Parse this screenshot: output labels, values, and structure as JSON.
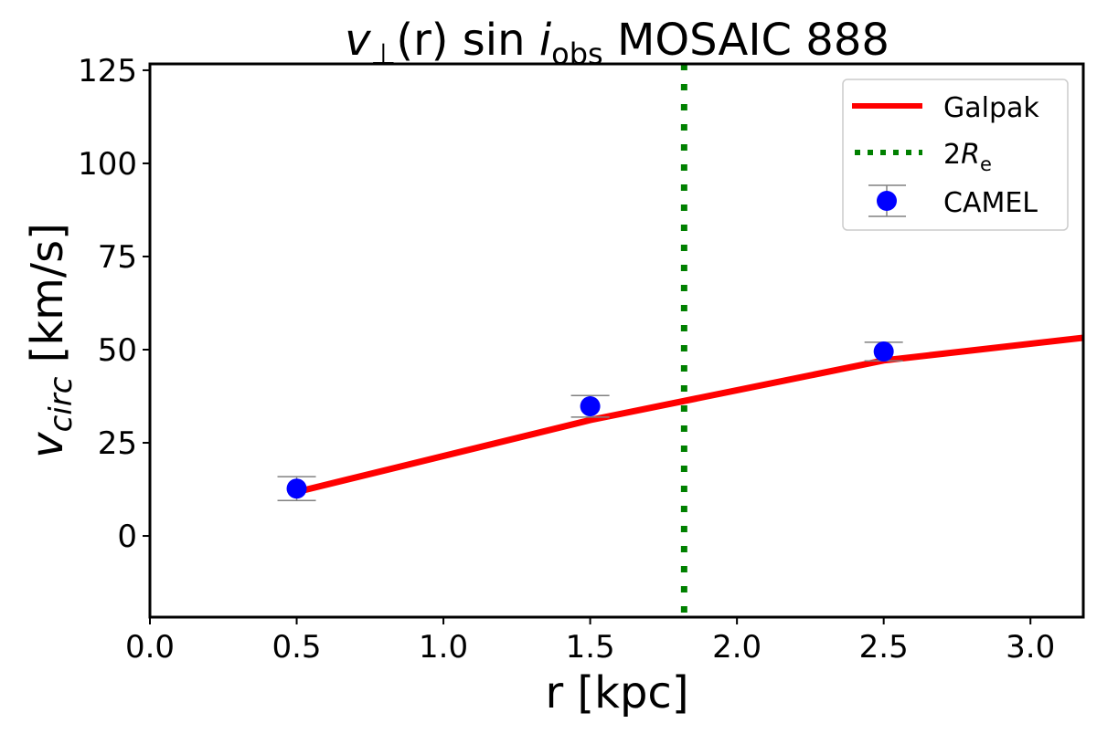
{
  "chart_data": {
    "type": "line",
    "title": {
      "v": "v",
      "sub_perp": "⊥",
      "mid": "(r) sin ",
      "i": "i",
      "sub_obs": "obs",
      "rest": " MOSAIC 888"
    },
    "xlabel": "r [kpc]",
    "ylabel": {
      "v": "v",
      "sub": "circ",
      "rest": " [km/s]"
    },
    "xlim": [
      0.0,
      3.18
    ],
    "ylim": [
      -21.8,
      126.7
    ],
    "xticks": [
      "0.0",
      "0.5",
      "1.0",
      "1.5",
      "2.0",
      "2.5",
      "3.0"
    ],
    "yticks": [
      "0",
      "25",
      "50",
      "75",
      "100",
      "125"
    ],
    "grid": false,
    "legend_position": "top-right",
    "series": [
      {
        "name": "Galpak",
        "type": "line",
        "color": "#ff0000",
        "x": [
          0.5,
          1.5,
          2.5,
          3.18
        ],
        "y": [
          11.8,
          31.1,
          47.1,
          53.2
        ]
      },
      {
        "name": "CAMEL",
        "type": "errorbar",
        "color": "#0000ff",
        "ecolor": "#808080",
        "x": [
          0.5,
          1.5,
          2.5
        ],
        "y": [
          12.7,
          34.8,
          49.5
        ],
        "yerr": [
          3.2,
          2.9,
          2.5
        ]
      }
    ],
    "vlines": [
      {
        "name": "2Re",
        "label": {
          "main": "2",
          "R": "R",
          "sub": "e"
        },
        "x": 1.82,
        "color": "#008000",
        "style": "dotted"
      }
    ]
  }
}
